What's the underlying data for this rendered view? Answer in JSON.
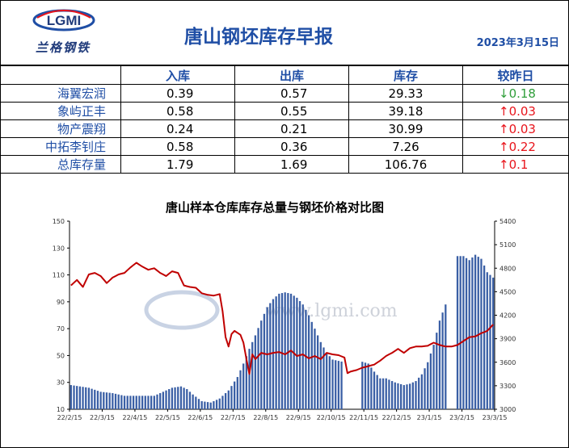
{
  "header": {
    "logo_mark": "LGMI",
    "logo_text": "兰格钢铁",
    "title": "唐山钢坯库存早报",
    "date": "2023年3月15日"
  },
  "table": {
    "columns": [
      "",
      "入库",
      "出库",
      "库存",
      "较昨日"
    ],
    "rows": [
      {
        "name": "海翼宏润",
        "in": "0.39",
        "out": "0.57",
        "stock": "29.33",
        "change_arrow": "↓",
        "change_value": "0.18",
        "direction": "down"
      },
      {
        "name": "象屿正丰",
        "in": "0.58",
        "out": "0.55",
        "stock": "39.18",
        "change_arrow": "↑",
        "change_value": "0.03",
        "direction": "up"
      },
      {
        "name": "物产震翔",
        "in": "0.24",
        "out": "0.21",
        "stock": "30.99",
        "change_arrow": "↑",
        "change_value": "0.03",
        "direction": "up"
      },
      {
        "name": "中拓李钊庄",
        "in": "0.58",
        "out": "0.36",
        "stock": "7.26",
        "change_arrow": "↑",
        "change_value": "0.22",
        "direction": "up"
      },
      {
        "name": "总库存量",
        "in": "1.79",
        "out": "1.69",
        "stock": "106.76",
        "change_arrow": "↑",
        "change_value": "0.1",
        "direction": "up"
      }
    ]
  },
  "colors": {
    "accent": "#1f4ea5",
    "bar": "#3a5fa5",
    "line": "#c00000",
    "up": "#e8141b",
    "down": "#2f9e3a"
  },
  "chart_data": {
    "type": "bar+line",
    "title": "唐山样本仓库库存总量与钢坯价格对比图",
    "watermark": "www.lgmi.com",
    "x_ticks": [
      "22/2/15",
      "22/3/15",
      "22/4/15",
      "22/5/15",
      "22/6/15",
      "22/7/15",
      "22/8/15",
      "22/9/15",
      "22/10/15",
      "22/11/15",
      "22/12/15",
      "23/1/15",
      "23/2/15",
      "23/3/15"
    ],
    "y_left": {
      "ticks": [
        10,
        30,
        50,
        70,
        90,
        110,
        130,
        150
      ],
      "range": [
        10,
        150
      ]
    },
    "y_right": {
      "ticks": [
        3000,
        3300,
        3600,
        3900,
        4200,
        4500,
        4800,
        5100,
        5400
      ],
      "range": [
        3000,
        5400
      ]
    },
    "bar_series_anchors": [
      [
        0,
        28
      ],
      [
        6,
        26
      ],
      [
        10,
        23
      ],
      [
        14,
        22
      ],
      [
        18,
        20
      ],
      [
        24,
        20
      ],
      [
        28,
        20
      ],
      [
        31,
        23
      ],
      [
        34,
        26
      ],
      [
        37,
        27
      ],
      [
        39,
        25
      ],
      [
        41,
        21
      ],
      [
        44,
        16
      ],
      [
        47,
        15
      ],
      [
        50,
        18
      ],
      [
        53,
        24
      ],
      [
        56,
        34
      ],
      [
        58,
        44
      ],
      [
        60,
        55
      ],
      [
        62,
        65
      ],
      [
        64,
        76
      ],
      [
        66,
        86
      ],
      [
        68,
        92
      ],
      [
        70,
        96
      ],
      [
        72,
        97
      ],
      [
        74,
        96
      ],
      [
        76,
        93
      ],
      [
        78,
        88
      ],
      [
        80,
        80
      ],
      [
        82,
        70
      ],
      [
        84,
        60
      ],
      [
        86,
        52
      ],
      [
        88,
        47
      ],
      [
        90,
        46
      ],
      [
        92,
        45
      ],
      [
        95,
        45
      ],
      [
        97,
        46
      ],
      [
        100,
        44
      ],
      [
        102,
        38
      ],
      [
        104,
        33
      ],
      [
        106,
        33
      ],
      [
        109,
        30
      ],
      [
        112,
        28
      ],
      [
        114,
        29
      ],
      [
        116,
        31
      ],
      [
        118,
        36
      ],
      [
        120,
        45
      ],
      [
        122,
        58
      ],
      [
        124,
        76
      ],
      [
        126,
        88
      ],
      [
        128,
        108
      ],
      [
        130,
        124
      ],
      [
        132,
        124
      ],
      [
        134,
        121
      ],
      [
        136,
        125
      ],
      [
        138,
        122
      ],
      [
        140,
        112
      ],
      [
        142,
        108
      ]
    ],
    "bar_gaps": [
      [
        92,
        97
      ],
      [
        127,
        129
      ]
    ],
    "line_series_anchors": [
      [
        0,
        4580
      ],
      [
        2,
        4650
      ],
      [
        4,
        4560
      ],
      [
        6,
        4720
      ],
      [
        8,
        4740
      ],
      [
        10,
        4700
      ],
      [
        12,
        4610
      ],
      [
        14,
        4680
      ],
      [
        16,
        4720
      ],
      [
        18,
        4740
      ],
      [
        20,
        4810
      ],
      [
        22,
        4870
      ],
      [
        24,
        4820
      ],
      [
        26,
        4780
      ],
      [
        28,
        4800
      ],
      [
        30,
        4740
      ],
      [
        32,
        4700
      ],
      [
        34,
        4760
      ],
      [
        36,
        4740
      ],
      [
        38,
        4580
      ],
      [
        40,
        4560
      ],
      [
        42,
        4550
      ],
      [
        44,
        4480
      ],
      [
        46,
        4460
      ],
      [
        48,
        4450
      ],
      [
        50,
        4470
      ],
      [
        51,
        4250
      ],
      [
        52,
        3920
      ],
      [
        53,
        3800
      ],
      [
        54,
        3960
      ],
      [
        55,
        4000
      ],
      [
        57,
        3950
      ],
      [
        58,
        3850
      ],
      [
        59,
        3640
      ],
      [
        60,
        3450
      ],
      [
        61,
        3700
      ],
      [
        62,
        3640
      ],
      [
        64,
        3720
      ],
      [
        66,
        3700
      ],
      [
        68,
        3720
      ],
      [
        70,
        3730
      ],
      [
        72,
        3700
      ],
      [
        74,
        3750
      ],
      [
        76,
        3680
      ],
      [
        78,
        3700
      ],
      [
        80,
        3650
      ],
      [
        82,
        3680
      ],
      [
        84,
        3640
      ],
      [
        86,
        3720
      ],
      [
        88,
        3700
      ],
      [
        90,
        3690
      ],
      [
        92,
        3660
      ],
      [
        93,
        3460
      ],
      [
        94,
        3480
      ],
      [
        96,
        3500
      ],
      [
        98,
        3530
      ],
      [
        100,
        3550
      ],
      [
        102,
        3570
      ],
      [
        104,
        3620
      ],
      [
        106,
        3680
      ],
      [
        108,
        3720
      ],
      [
        110,
        3770
      ],
      [
        112,
        3720
      ],
      [
        114,
        3780
      ],
      [
        116,
        3800
      ],
      [
        118,
        3800
      ],
      [
        120,
        3810
      ],
      [
        122,
        3850
      ],
      [
        124,
        3820
      ],
      [
        126,
        3800
      ],
      [
        128,
        3800
      ],
      [
        130,
        3820
      ],
      [
        132,
        3870
      ],
      [
        134,
        3920
      ],
      [
        136,
        3930
      ],
      [
        138,
        3970
      ],
      [
        140,
        4000
      ],
      [
        142,
        4080
      ]
    ],
    "x_index_max": 142
  }
}
